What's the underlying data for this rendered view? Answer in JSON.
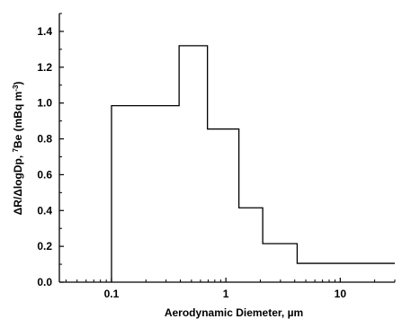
{
  "chart_data": {
    "type": "line",
    "subtype": "step-histogram",
    "xscale": "log",
    "xlabel": "Aerodynamic Diemeter, µm",
    "ylabel_parts": [
      "ΔR/ΔlogDp, ",
      "7",
      "Be (mBq m",
      "-3",
      ")"
    ],
    "xlim": [
      0.035,
      30
    ],
    "ylim": [
      0,
      1.5
    ],
    "x_ticks": [
      {
        "value": 0.1,
        "label": "0.1"
      },
      {
        "value": 1,
        "label": "1"
      },
      {
        "value": 10,
        "label": "10"
      }
    ],
    "y_ticks": [
      {
        "value": 0.0,
        "label": "0.0"
      },
      {
        "value": 0.2,
        "label": "0.2"
      },
      {
        "value": 0.4,
        "label": "0.4"
      },
      {
        "value": 0.6,
        "label": "0.6"
      },
      {
        "value": 0.8,
        "label": "0.8"
      },
      {
        "value": 1.0,
        "label": "1.0"
      },
      {
        "value": 1.2,
        "label": "1.2"
      },
      {
        "value": 1.4,
        "label": "1.4"
      }
    ],
    "bins": [
      {
        "x_start": 0.1,
        "x_end": 0.39,
        "value": 0.985
      },
      {
        "x_start": 0.39,
        "x_end": 0.69,
        "value": 1.32
      },
      {
        "x_start": 0.69,
        "x_end": 1.3,
        "value": 0.855
      },
      {
        "x_start": 1.3,
        "x_end": 2.1,
        "value": 0.415
      },
      {
        "x_start": 2.1,
        "x_end": 4.2,
        "value": 0.215
      },
      {
        "x_start": 4.2,
        "x_end": 30,
        "value": 0.105
      }
    ],
    "grid": false,
    "legend": "none",
    "line_color": "#000000"
  }
}
